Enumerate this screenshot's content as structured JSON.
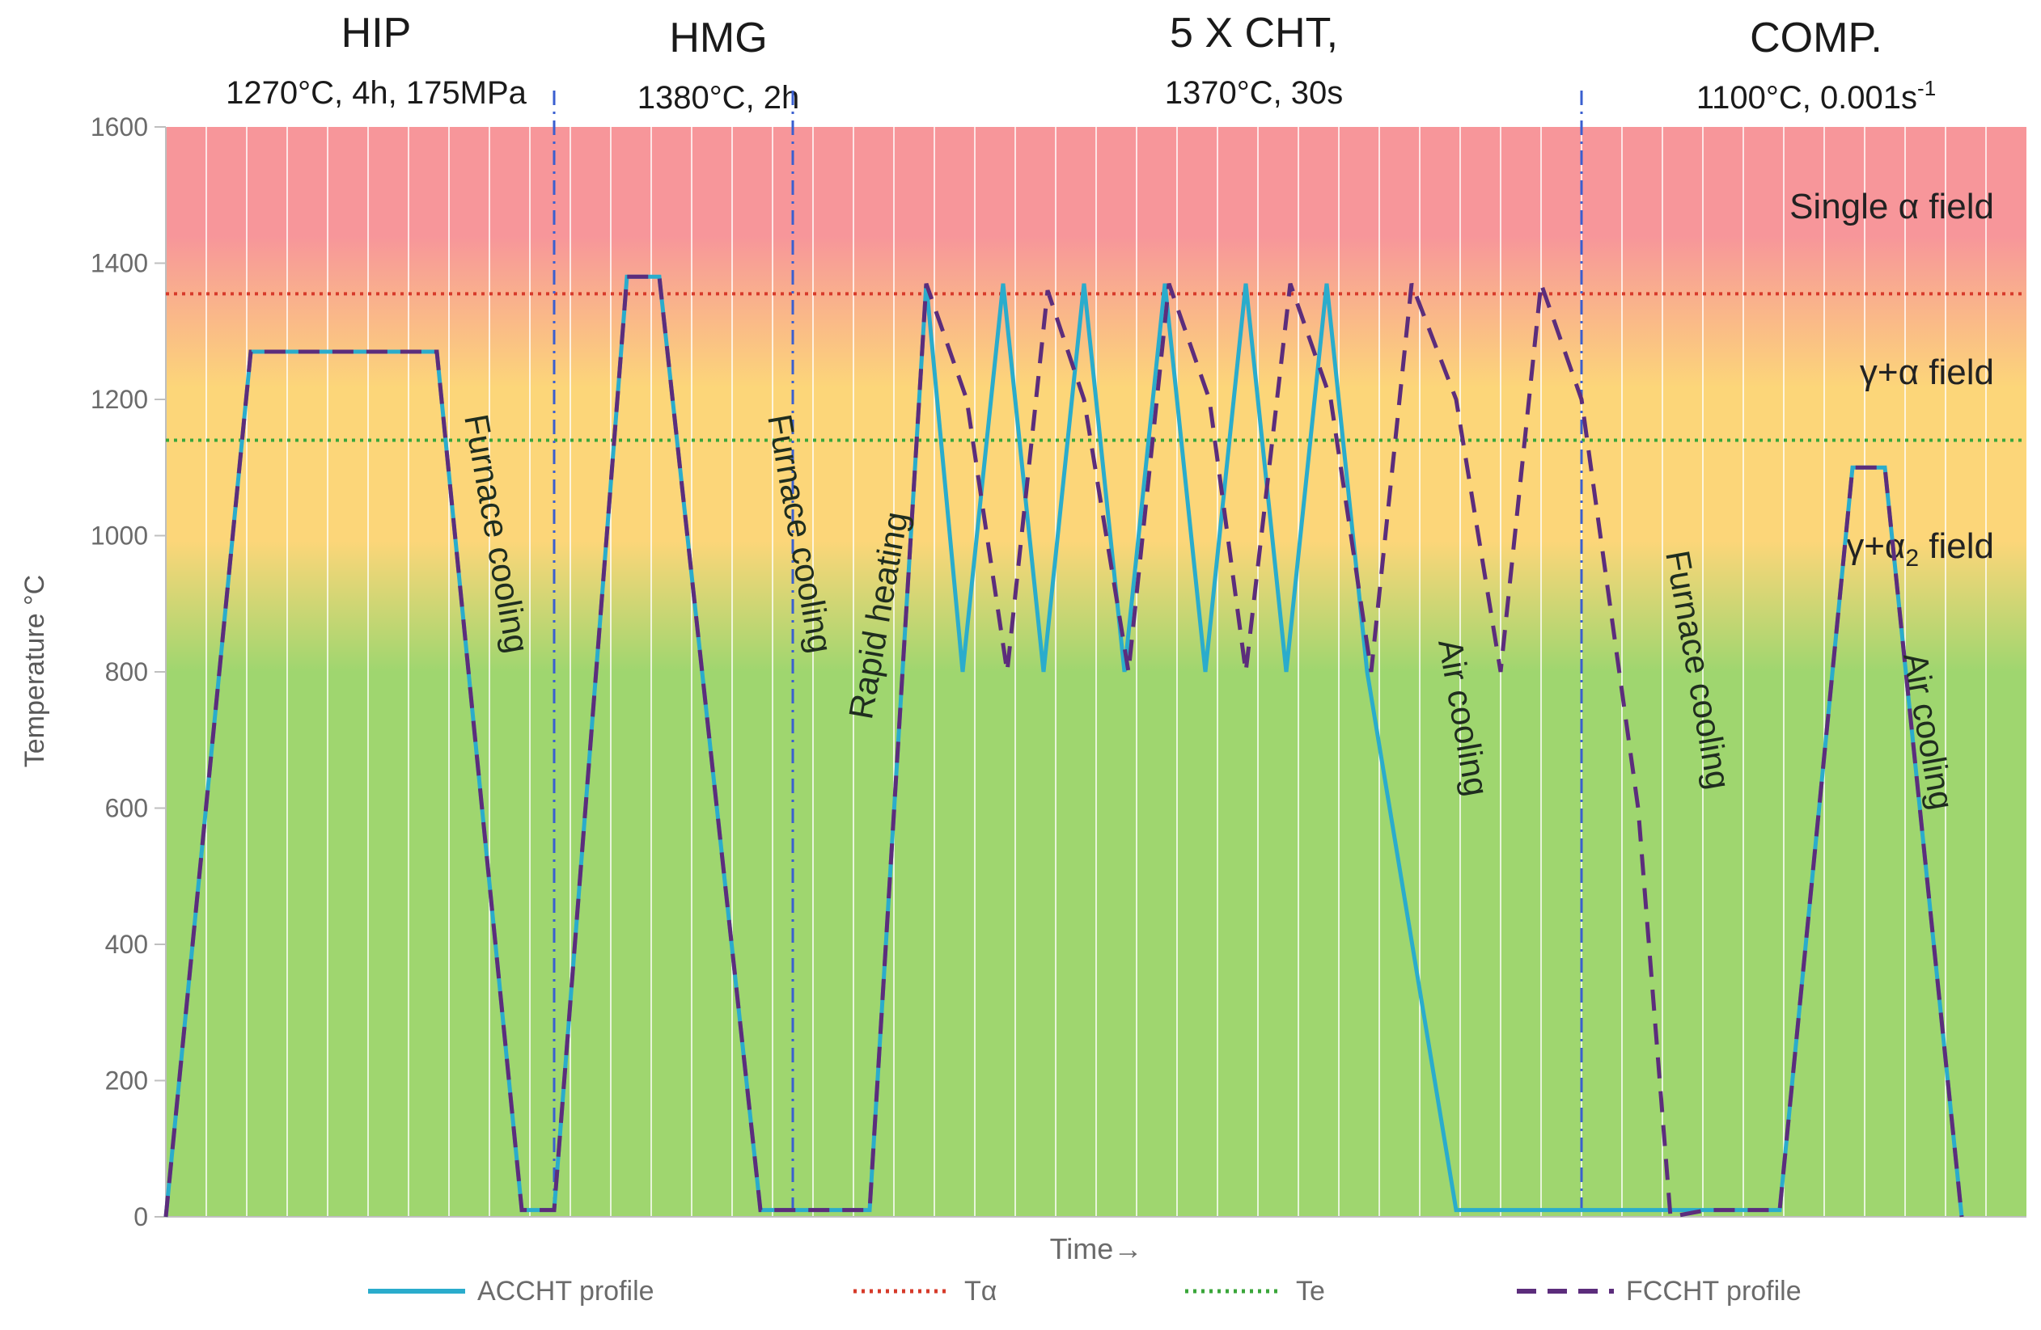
{
  "stages": [
    {
      "title": "HIP",
      "subtitle": "1270°C, 4h, 175MPa"
    },
    {
      "title": "HMG",
      "subtitle": "1380°C, 2h"
    },
    {
      "title": "5 X CHT,",
      "subtitle": "1370°C, 30s"
    },
    {
      "title": "COMP.",
      "subtitle": "1100°C, 0.001s",
      "subtitle_sup": "-1"
    }
  ],
  "fields": {
    "single_alpha": "Single α field",
    "gamma_alpha": "γ+α field",
    "gamma_alpha2_base": "γ+α",
    "gamma_alpha2_sub": "2",
    "gamma_alpha2_tail": " field"
  },
  "annotations": [
    {
      "text": "Furnace cooling",
      "t": 3.95,
      "T": 1000
    },
    {
      "text": "Furnace cooling",
      "t": 7.7,
      "T": 1000
    },
    {
      "text": "Rapid heating",
      "t": 8.95,
      "T": 880
    },
    {
      "text": "Air cooling",
      "t": 15.9,
      "T": 730
    },
    {
      "text": "Furnace cooling",
      "t": 18.8,
      "T": 800
    },
    {
      "text": "Air cooling",
      "t": 21.65,
      "T": 710
    }
  ],
  "colors": {
    "accht": "#2aaccc",
    "fccht": "#5c2d7c",
    "t_alpha": "#d63a2a",
    "t_e": "#3aa63a",
    "stage_divider": "#3a5fd0",
    "grid": "#ffffff",
    "axis": "#bfbfbf",
    "band_top": "#f7969a",
    "band_mid": "#fcd679",
    "band_bottom": "#9fd66f"
  },
  "chart_data": {
    "type": "line",
    "xlabel": "Time→",
    "ylabel": "Temperature  °C",
    "xlim": [
      0,
      23
    ],
    "ylim": [
      0,
      1600
    ],
    "yticks": [
      0,
      200,
      400,
      600,
      800,
      1000,
      1200,
      1400,
      1600
    ],
    "grid": true,
    "legend_position": "bottom",
    "stage_dividers_t": [
      4.8,
      7.75,
      17.5
    ],
    "series": [
      {
        "name": "ACCHT profile",
        "style": "solid",
        "t": [
          0,
          1.05,
          3.35,
          4.4,
          4.8,
          5.7,
          6.1,
          7.35,
          7.75,
          8.7,
          9.4,
          9.85,
          10.35,
          10.85,
          11.35,
          11.85,
          12.35,
          12.85,
          13.35,
          13.85,
          14.35,
          14.85,
          15.95,
          19.05,
          19.95,
          20.85,
          21.25,
          22.2
        ],
        "T": [
          0,
          1270,
          1270,
          10,
          10,
          1380,
          1380,
          10,
          10,
          10,
          1370,
          800,
          1370,
          800,
          1370,
          800,
          1370,
          800,
          1370,
          800,
          1370,
          800,
          10,
          10,
          10,
          1100,
          1100,
          0
        ]
      },
      {
        "name": "FCCHT profile",
        "style": "dashed",
        "t": [
          0,
          1.05,
          3.35,
          4.4,
          4.8,
          5.7,
          6.1,
          7.35,
          7.75,
          8.7,
          9.4,
          9.9,
          10.4,
          10.9,
          11.35,
          11.9,
          12.4,
          12.9,
          13.35,
          13.9,
          14.4,
          14.9,
          15.4,
          15.95,
          16.5,
          17.0,
          17.5,
          18.2,
          18.6,
          19.05,
          19.95,
          20.85,
          21.25,
          22.2
        ],
        "T": [
          0,
          1270,
          1270,
          10,
          10,
          1380,
          1380,
          10,
          10,
          10,
          1370,
          1200,
          800,
          1360,
          1200,
          800,
          1370,
          1200,
          800,
          1370,
          1200,
          800,
          1370,
          1200,
          800,
          1370,
          1200,
          600,
          0,
          10,
          10,
          1100,
          1100,
          0
        ]
      },
      {
        "name": "Tα",
        "style": "dotted",
        "t": [
          0,
          23
        ],
        "T": [
          1355,
          1355
        ]
      },
      {
        "name": "Te",
        "style": "dotted",
        "t": [
          0,
          23
        ],
        "T": [
          1140,
          1140
        ]
      }
    ]
  }
}
